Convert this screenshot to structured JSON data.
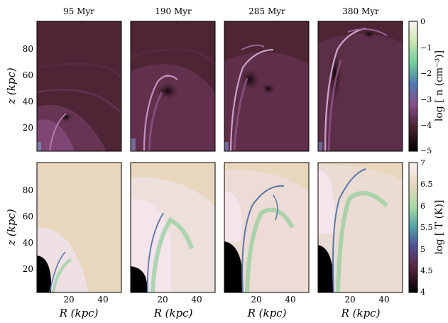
{
  "figure": {
    "time_labels": [
      "95 Myr",
      "190 Myr",
      "285 Myr",
      "380 Myr"
    ],
    "y_axis_label": "z (kpc)",
    "x_axis_label": "R (kpc)",
    "x_ticks": [
      "20",
      "40"
    ],
    "y_ticks": [
      "20",
      "40",
      "60",
      "80"
    ],
    "rows": [
      {
        "quantity": "density",
        "colorbar_label": "log [ n (cm⁻³)]",
        "colorbar_ticks": [
          "0",
          "−1",
          "−2",
          "−3",
          "−4",
          "−5"
        ],
        "colors": {
          "background": "#4d2534",
          "dense": "#a85aa0",
          "shock": "#c8a0c8",
          "void": "#140a10"
        }
      },
      {
        "quantity": "temperature",
        "colorbar_label": "log [ T (K)]",
        "colorbar_ticks": [
          "7",
          "6.5",
          "6",
          "5.5",
          "5",
          "4.5",
          "4"
        ],
        "colors": {
          "background": "#e8d6bd",
          "hot": "#f4e4ec",
          "cool_gas": "#8fcf9a",
          "cold_shell": "#5a78a8",
          "disk": "#000000"
        }
      }
    ]
  }
}
